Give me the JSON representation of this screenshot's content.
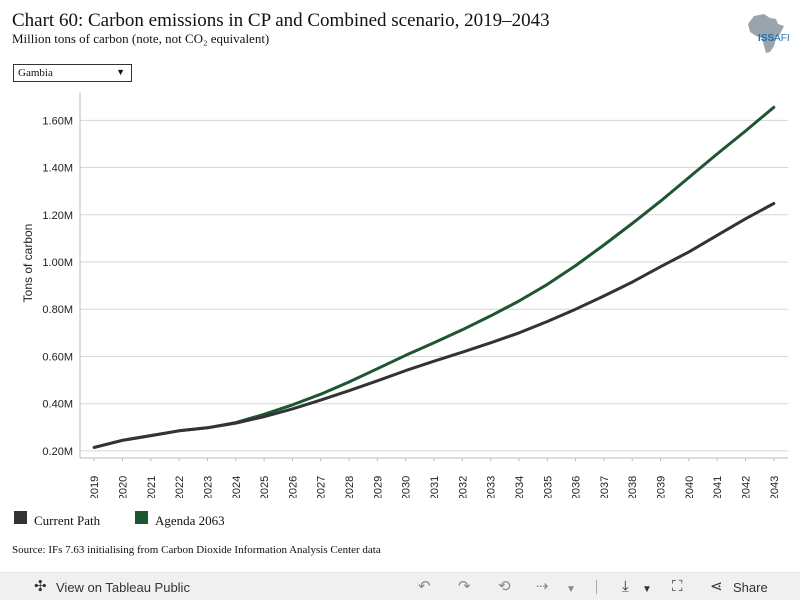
{
  "header": {
    "title": "Chart 60: Carbon emissions in CP and Combined scenario, 2019–2043",
    "subtitle": "Million tons of carbon (note, not CO₂ equivalent)"
  },
  "logo": {
    "text_primary": "ISS",
    "text_secondary": "AFI",
    "icon": "africa-map-icon"
  },
  "filter": {
    "selected": "Gambia",
    "icon": "dropdown-arrow-icon"
  },
  "legend": [
    {
      "label": "Current Path",
      "color": "#333333"
    },
    {
      "label": "Agenda 2063",
      "color": "#1e5631"
    }
  ],
  "source": "Source: IFs 7.63 initialising from Carbon Dioxide Information Analysis Center data",
  "toolbar": {
    "view_label": "View on Tableau Public",
    "share_label": "Share",
    "icons": [
      "tableau-icon",
      "undo-icon",
      "redo-icon",
      "revert-icon",
      "refresh-icon",
      "download-icon",
      "fullscreen-icon",
      "share-icon"
    ]
  },
  "chart_data": {
    "type": "line",
    "title": "",
    "xlabel": "",
    "ylabel": "Tons of carbon",
    "x": [
      2019,
      2020,
      2021,
      2022,
      2023,
      2024,
      2025,
      2026,
      2027,
      2028,
      2029,
      2030,
      2031,
      2032,
      2033,
      2034,
      2035,
      2036,
      2037,
      2038,
      2039,
      2040,
      2041,
      2042,
      2043
    ],
    "ylim": [
      0.17,
      1.72
    ],
    "yticks": [
      0.2,
      0.4,
      0.6,
      0.8,
      1.0,
      1.2,
      1.4,
      1.6
    ],
    "ytick_labels": [
      "0.20M",
      "0.40M",
      "0.60M",
      "0.80M",
      "1.00M",
      "1.20M",
      "1.40M",
      "1.60M"
    ],
    "grid": "horizontal",
    "legend_position": "bottom-left",
    "series": [
      {
        "name": "Current Path",
        "color": "#333333",
        "values": [
          0.215,
          0.245,
          0.265,
          0.285,
          0.298,
          0.318,
          0.345,
          0.378,
          0.415,
          0.455,
          0.497,
          0.54,
          0.58,
          0.618,
          0.658,
          0.7,
          0.748,
          0.8,
          0.856,
          0.915,
          0.98,
          1.043,
          1.113,
          1.183,
          1.248
        ]
      },
      {
        "name": "Agenda 2063",
        "color": "#1e5631",
        "values": [
          0.215,
          0.245,
          0.265,
          0.285,
          0.298,
          0.32,
          0.355,
          0.395,
          0.44,
          0.492,
          0.548,
          0.605,
          0.658,
          0.713,
          0.772,
          0.835,
          0.905,
          0.985,
          1.072,
          1.163,
          1.258,
          1.358,
          1.458,
          1.555,
          1.655
        ]
      }
    ]
  }
}
